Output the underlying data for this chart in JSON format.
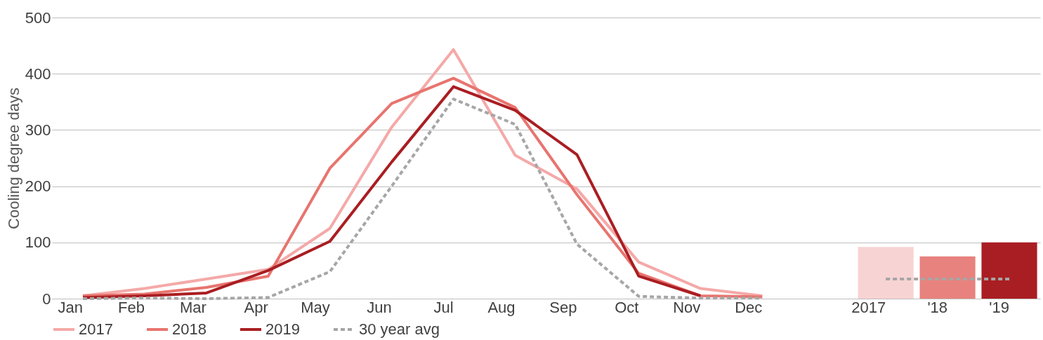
{
  "chart_data": {
    "type": "line",
    "ylabel": "Cooling degree days",
    "categories": [
      "Jan",
      "Feb",
      "Mar",
      "Apr",
      "May",
      "Jun",
      "Jul",
      "Aug",
      "Sep",
      "Oct",
      "Nov",
      "Dec",
      null,
      "2017",
      "'18",
      "'19"
    ],
    "ylim": [
      0,
      500
    ],
    "yticks": [
      0,
      100,
      200,
      300,
      400,
      500
    ],
    "grid": "y",
    "legend": "bottom",
    "marker": "none",
    "series": [
      {
        "name": "2017",
        "color": "#f4a9a8",
        "line_style": "solid",
        "values": [
          5,
          18,
          35,
          52,
          125,
          305,
          443,
          255,
          195,
          65,
          18,
          5,
          null,
          null,
          null,
          null
        ]
      },
      {
        "name": "2018",
        "color": "#e8746f",
        "line_style": "solid",
        "values": [
          5,
          8,
          20,
          40,
          232,
          347,
          392,
          340,
          185,
          45,
          5,
          3,
          null,
          null,
          null,
          null
        ]
      },
      {
        "name": "2019",
        "color": "#a91e22",
        "line_style": "solid",
        "values": [
          2,
          5,
          10,
          50,
          102,
          243,
          377,
          335,
          256,
          40,
          5,
          null,
          null,
          null,
          null,
          null
        ]
      },
      {
        "name": "30 year avg",
        "color": "#a6a6a6",
        "line_style": "dashed",
        "values": [
          0,
          1,
          0,
          2,
          48,
          200,
          355,
          310,
          97,
          4,
          1,
          1,
          null,
          null,
          null,
          null
        ]
      },
      {
        "type": "bar",
        "colors": [
          null,
          null,
          null,
          null,
          null,
          null,
          null,
          null,
          null,
          null,
          null,
          null,
          null,
          "#f8d3d3",
          "#e8827e",
          "#a91e22"
        ],
        "values": [
          null,
          null,
          null,
          null,
          null,
          null,
          null,
          null,
          null,
          null,
          null,
          null,
          null,
          92,
          75,
          100
        ]
      },
      {
        "color": "#a6a6a6",
        "line_style": "dashed",
        "values": [
          null,
          null,
          null,
          null,
          null,
          null,
          null,
          null,
          null,
          null,
          null,
          null,
          null,
          35,
          35,
          35
        ]
      }
    ]
  }
}
